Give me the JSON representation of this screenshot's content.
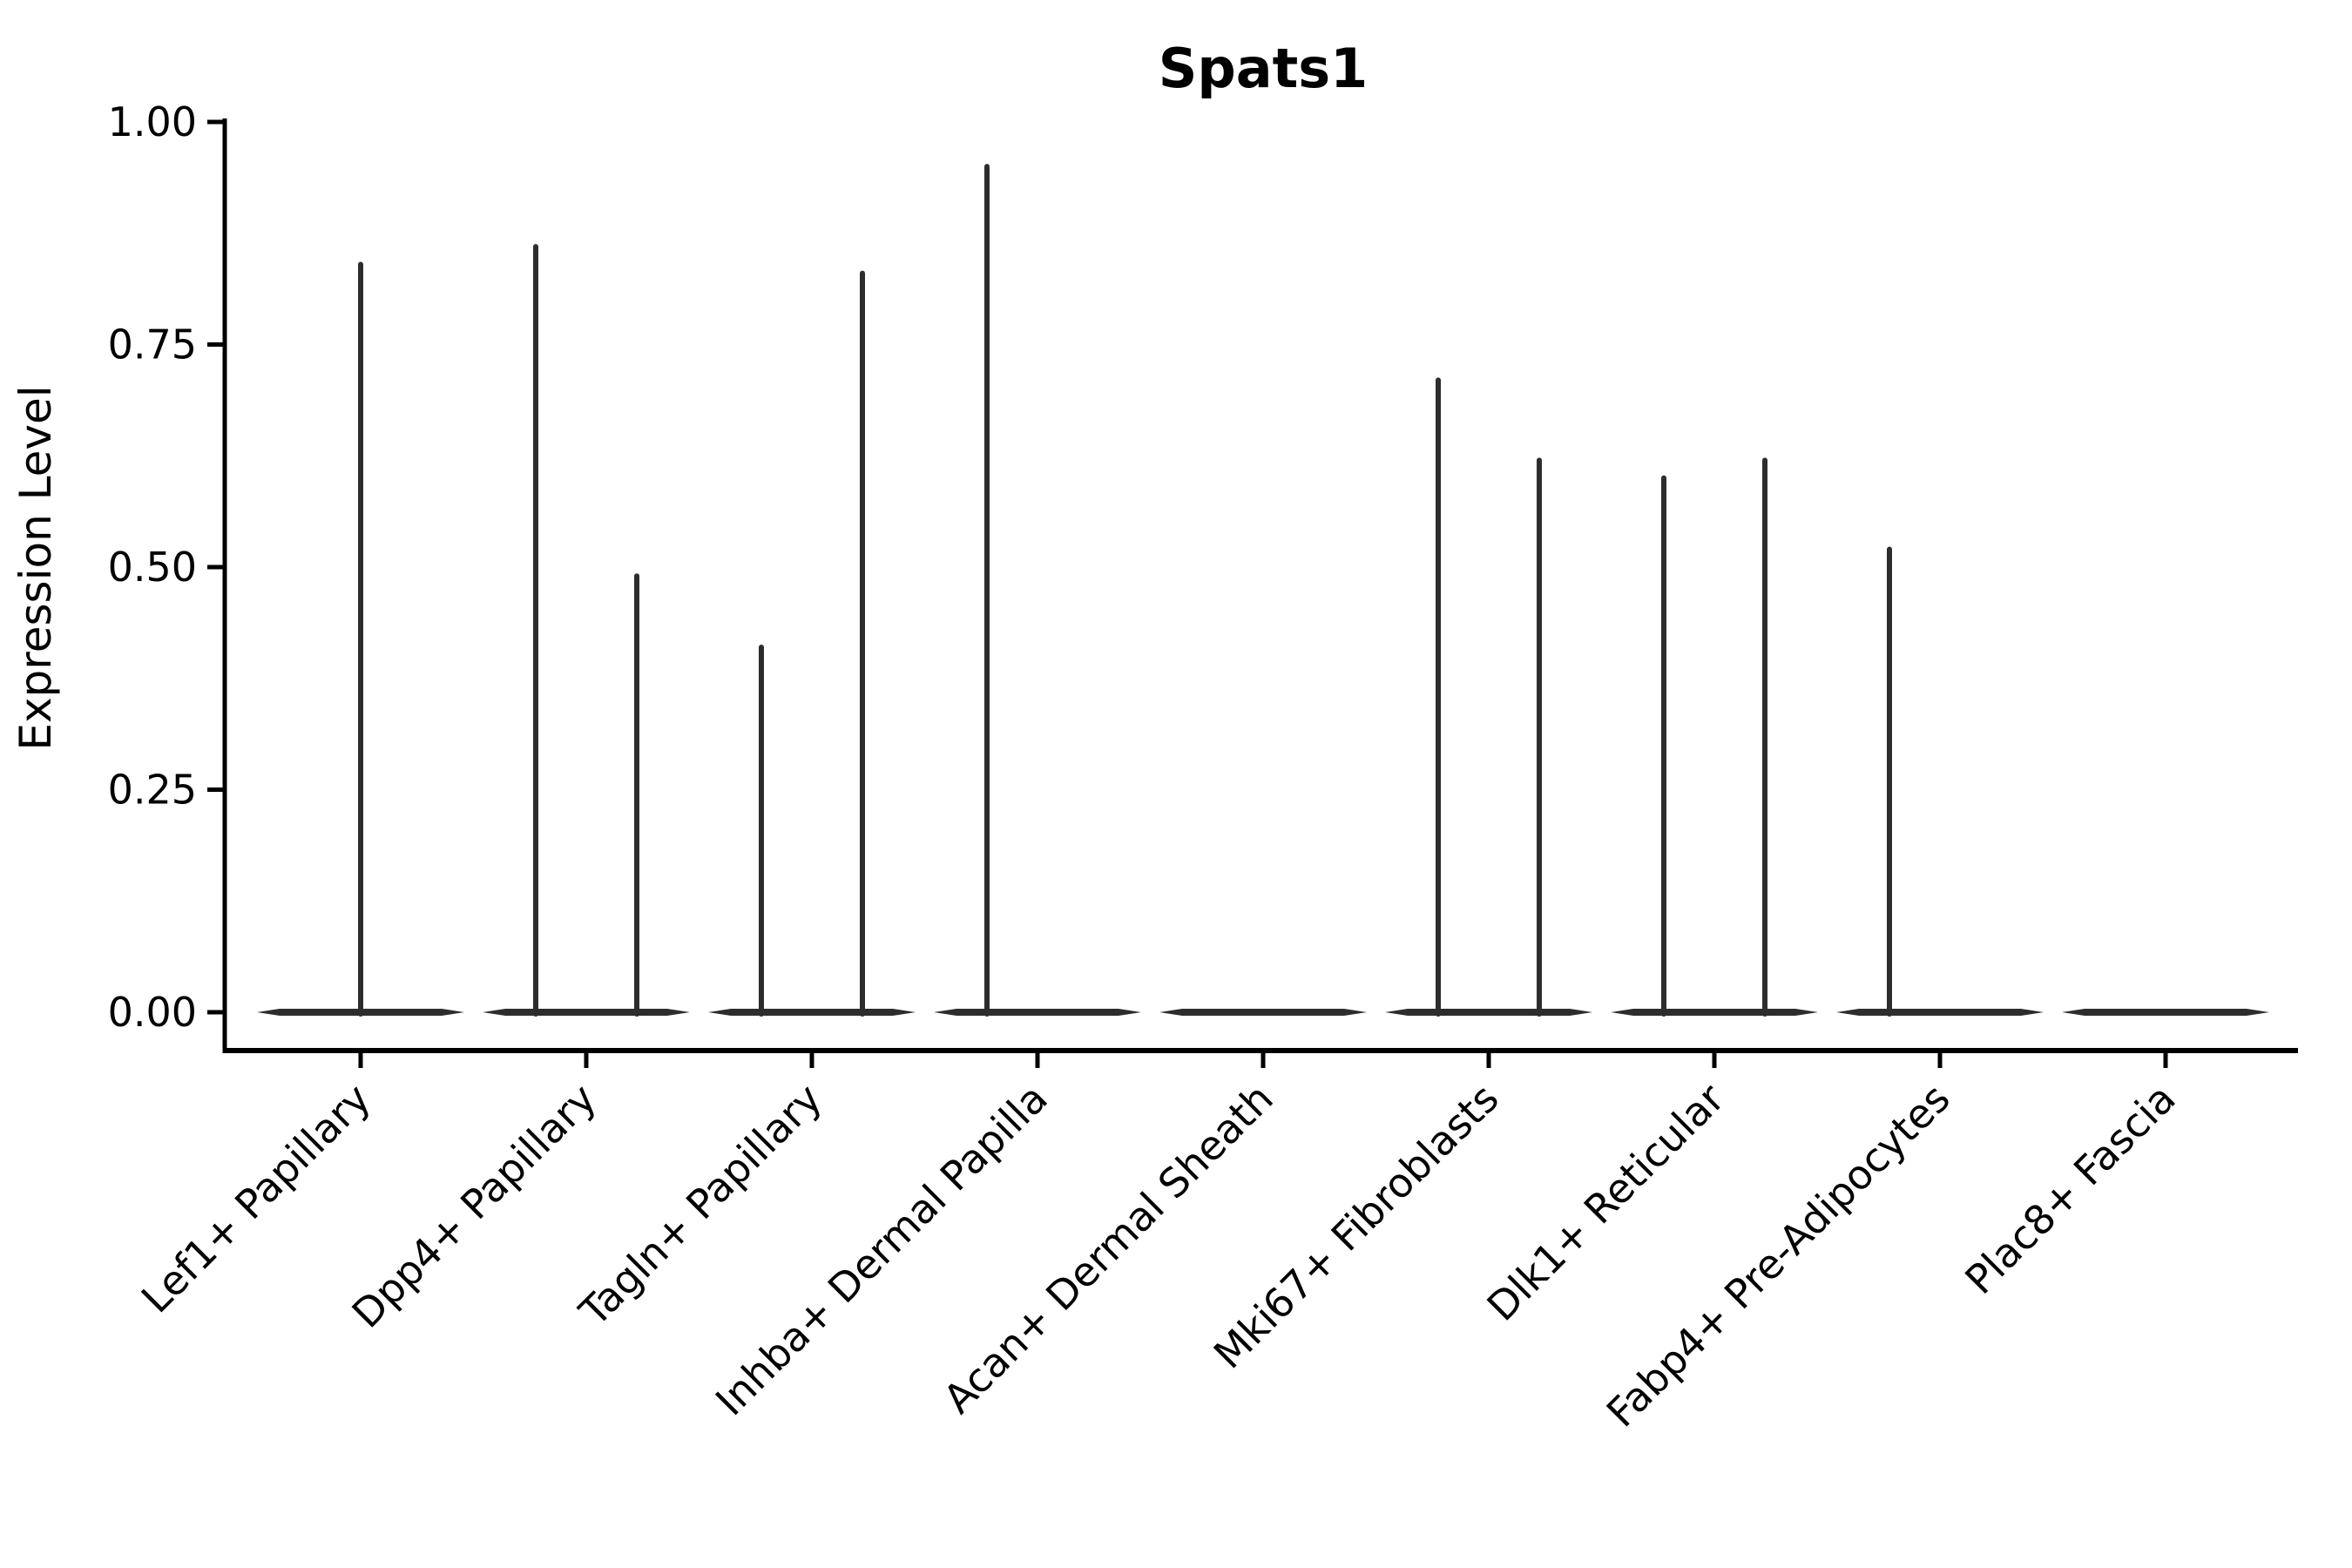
{
  "figure": {
    "title": "Spats1",
    "y_axis": {
      "label": "Expression Level",
      "tick_labels": [
        "0.00",
        "0.25",
        "0.50",
        "0.75",
        "1.00"
      ],
      "tick_values": [
        0,
        0.25,
        0.5,
        0.75,
        1.0
      ]
    },
    "x_axis": {
      "categories": [
        "Lef1+ Papillary",
        "Dpp4+ Papillary",
        "Tagln+ Papillary",
        "Inhba+ Dermal Papilla",
        "Acan+ Dermal Sheath",
        "Mki67+ Fibroblasts",
        "Dlk1+ Reticular",
        "Fabp4+ Pre-Adipocytes",
        "Plac8+ Fascia"
      ]
    }
  },
  "chart_data": {
    "type": "violin",
    "title": "Spats1",
    "xlabel": "",
    "ylabel": "Expression Level",
    "ylim": [
      0,
      1.0
    ],
    "yticks": [
      0,
      0.25,
      0.5,
      0.75,
      1.0
    ],
    "grid": false,
    "legend": null,
    "categories": [
      "Lef1+ Papillary",
      "Dpp4+ Papillary",
      "Tagln+ Papillary",
      "Inhba+ Dermal Papilla",
      "Acan+ Dermal Sheath",
      "Mki67+ Fibroblasts",
      "Dlk1+ Reticular",
      "Fabp4+ Pre-Adipocytes",
      "Plac8+ Fascia"
    ],
    "violins": [
      {
        "category": "Lef1+ Papillary",
        "baseline_value": 0,
        "spikes": [
          {
            "pos": "center",
            "max": 0.84
          }
        ]
      },
      {
        "category": "Dpp4+ Papillary",
        "baseline_value": 0,
        "spikes": [
          {
            "pos": "left",
            "max": 0.86
          },
          {
            "pos": "right",
            "max": 0.49
          }
        ]
      },
      {
        "category": "Tagln+ Papillary",
        "baseline_value": 0,
        "spikes": [
          {
            "pos": "left",
            "max": 0.41
          },
          {
            "pos": "right",
            "max": 0.83
          }
        ]
      },
      {
        "category": "Inhba+ Dermal Papilla",
        "baseline_value": 0,
        "spikes": [
          {
            "pos": "left",
            "max": 0.95
          }
        ]
      },
      {
        "category": "Acan+ Dermal Sheath",
        "baseline_value": 0,
        "spikes": []
      },
      {
        "category": "Mki67+ Fibroblasts",
        "baseline_value": 0,
        "spikes": [
          {
            "pos": "left",
            "max": 0.71
          },
          {
            "pos": "right",
            "max": 0.62
          }
        ]
      },
      {
        "category": "Dlk1+ Reticular",
        "baseline_value": 0,
        "spikes": [
          {
            "pos": "left",
            "max": 0.6
          },
          {
            "pos": "right",
            "max": 0.62
          }
        ]
      },
      {
        "category": "Fabp4+ Pre-Adipocytes",
        "baseline_value": 0,
        "spikes": [
          {
            "pos": "left",
            "max": 0.52
          }
        ]
      },
      {
        "category": "Plac8+ Fascia",
        "baseline_value": 0,
        "spikes": []
      }
    ],
    "colors": {
      "violin": "#2d2d2d",
      "axis": "#000000",
      "text": "#000000",
      "background": "#ffffff"
    }
  }
}
